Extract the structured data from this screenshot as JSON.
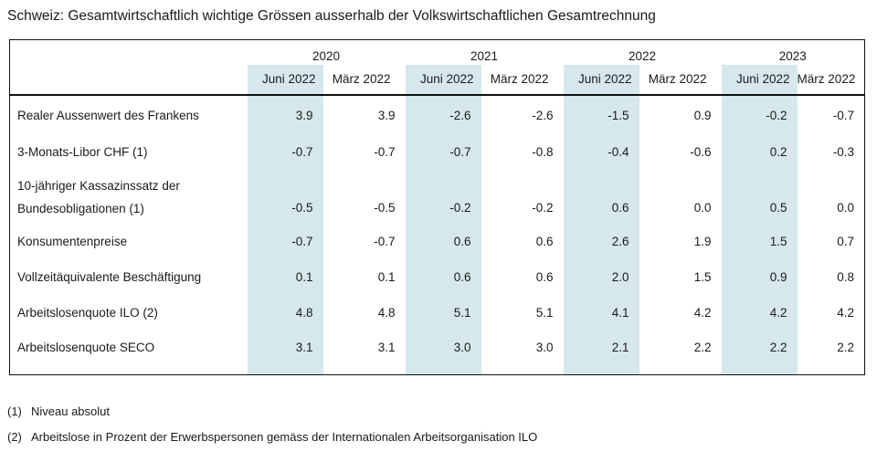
{
  "title": "Schweiz: Gesamtwirtschaftlich wichtige Grössen ausserhalb der Volkswirtschaftlichen Gesamtrechnung",
  "colors": {
    "highlight_column": "#d6e8ec",
    "border": "#111111",
    "text": "#1a1a1a"
  },
  "table": {
    "years": [
      "2020",
      "2021",
      "2022",
      "2023"
    ],
    "sub_headers": [
      "Juni 2022",
      "März 2022"
    ],
    "rows": [
      {
        "label_lines": [
          "Realer Aussenwert des Frankens"
        ],
        "values": [
          "3.9",
          "3.9",
          "-2.6",
          "-2.6",
          "-1.5",
          "0.9",
          "-0.2",
          "-0.7"
        ]
      },
      {
        "label_lines": [
          "3-Monats-Libor CHF (1)"
        ],
        "values": [
          "-0.7",
          "-0.7",
          "-0.7",
          "-0.8",
          "-0.4",
          "-0.6",
          "0.2",
          "-0.3"
        ]
      },
      {
        "label_lines": [
          "10-jähriger Kassazinssatz der",
          "Bundesobligationen  (1)"
        ],
        "values": [
          "-0.5",
          "-0.5",
          "-0.2",
          "-0.2",
          "0.6",
          "0.0",
          "0.5",
          "0.0"
        ]
      },
      {
        "label_lines": [
          "Konsumentenpreise"
        ],
        "values": [
          "-0.7",
          "-0.7",
          "0.6",
          "0.6",
          "2.6",
          "1.9",
          "1.5",
          "0.7"
        ]
      },
      {
        "label_lines": [
          "Vollzeitäquivalente Beschäftigung"
        ],
        "values": [
          "0.1",
          "0.1",
          "0.6",
          "0.6",
          "2.0",
          "1.5",
          "0.9",
          "0.8"
        ]
      },
      {
        "label_lines": [
          "Arbeitslosenquote ILO (2)"
        ],
        "values": [
          "4.8",
          "4.8",
          "5.1",
          "5.1",
          "4.1",
          "4.2",
          "4.2",
          "4.2"
        ]
      },
      {
        "label_lines": [
          "Arbeitslosenquote SECO"
        ],
        "values": [
          "3.1",
          "3.1",
          "3.0",
          "3.0",
          "2.1",
          "2.2",
          "2.2",
          "2.2"
        ]
      }
    ]
  },
  "footnotes": [
    {
      "marker": "(1)",
      "text": "Niveau absolut"
    },
    {
      "marker": "(2)",
      "text": "Arbeitslose in Prozent der Erwerbspersonen gemäss der Internationalen Arbeitsorganisation ILO"
    }
  ]
}
